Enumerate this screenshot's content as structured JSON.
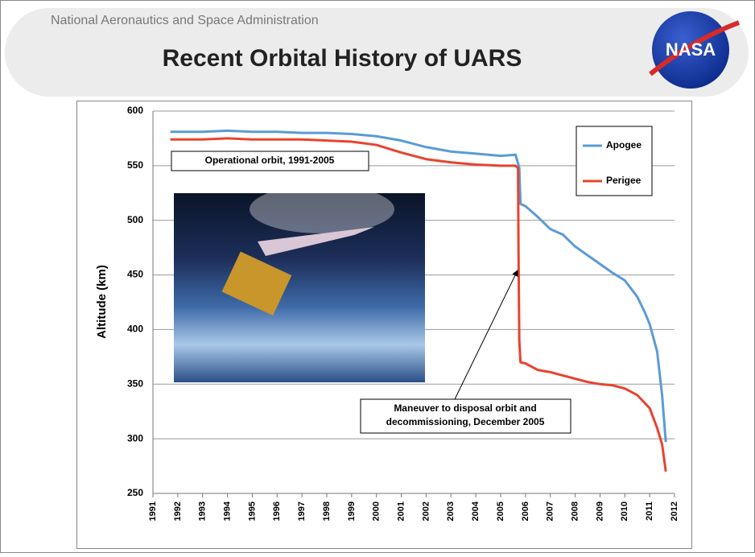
{
  "header": {
    "agency": "National Aeronautics and Space Administration",
    "title": "Recent Orbital History of UARS",
    "logo_text": "NASA"
  },
  "chart_data": {
    "type": "line",
    "y_label": "Altitude (km)",
    "xlim": [
      1991,
      2012
    ],
    "xticks": [
      1991,
      1992,
      1993,
      1994,
      1995,
      1996,
      1997,
      1998,
      1999,
      2000,
      2001,
      2002,
      2003,
      2004,
      2005,
      2006,
      2007,
      2008,
      2009,
      2010,
      2011,
      2012
    ],
    "ylim": [
      250,
      600
    ],
    "yticks": [
      250,
      300,
      350,
      400,
      450,
      500,
      550,
      600
    ],
    "grid": true,
    "legend": "upper right",
    "annotations": [
      {
        "text": [
          "Operational orbit, 1991-2005"
        ]
      },
      {
        "text": [
          "Maneuver to disposal orbit and",
          "decommissioning, December 2005"
        ]
      }
    ],
    "series": [
      {
        "name": "Apogee",
        "color": "#5b9bd5",
        "x": [
          1991.7,
          1992,
          1993,
          1994,
          1995,
          1996,
          1997,
          1998,
          1999,
          2000,
          2001,
          2002,
          2003,
          2004,
          2005,
          2005.6,
          2005.75,
          2005.8,
          2006,
          2006.5,
          2007,
          2007.5,
          2008,
          2008.5,
          2009,
          2009.5,
          2010,
          2010.5,
          2010.8,
          2011,
          2011.3,
          2011.5,
          2011.65
        ],
        "values": [
          581,
          581,
          581,
          582,
          581,
          581,
          580,
          580,
          579,
          577,
          573,
          567,
          563,
          561,
          559,
          560,
          548,
          515,
          513,
          503,
          492,
          487,
          476,
          468,
          460,
          452,
          445,
          430,
          416,
          405,
          380,
          340,
          297
        ]
      },
      {
        "name": "Perigee",
        "color": "#e8432f",
        "x": [
          1991.7,
          1992,
          1993,
          1994,
          1995,
          1996,
          1997,
          1998,
          1999,
          2000,
          2001,
          2002,
          2003,
          2004,
          2005,
          2005.6,
          2005.7,
          2005.72,
          2005.75,
          2005.8,
          2006,
          2006.5,
          2007,
          2007.5,
          2008,
          2008.5,
          2009,
          2009.5,
          2010,
          2010.5,
          2011,
          2011.3,
          2011.5,
          2011.65
        ],
        "values": [
          574,
          574,
          574,
          575,
          574,
          574,
          574,
          573,
          572,
          569,
          562,
          556,
          553,
          551,
          550,
          550,
          548,
          470,
          390,
          370,
          369,
          363,
          361,
          358,
          355,
          352,
          350,
          349,
          346,
          340,
          328,
          310,
          295,
          270
        ]
      }
    ]
  }
}
